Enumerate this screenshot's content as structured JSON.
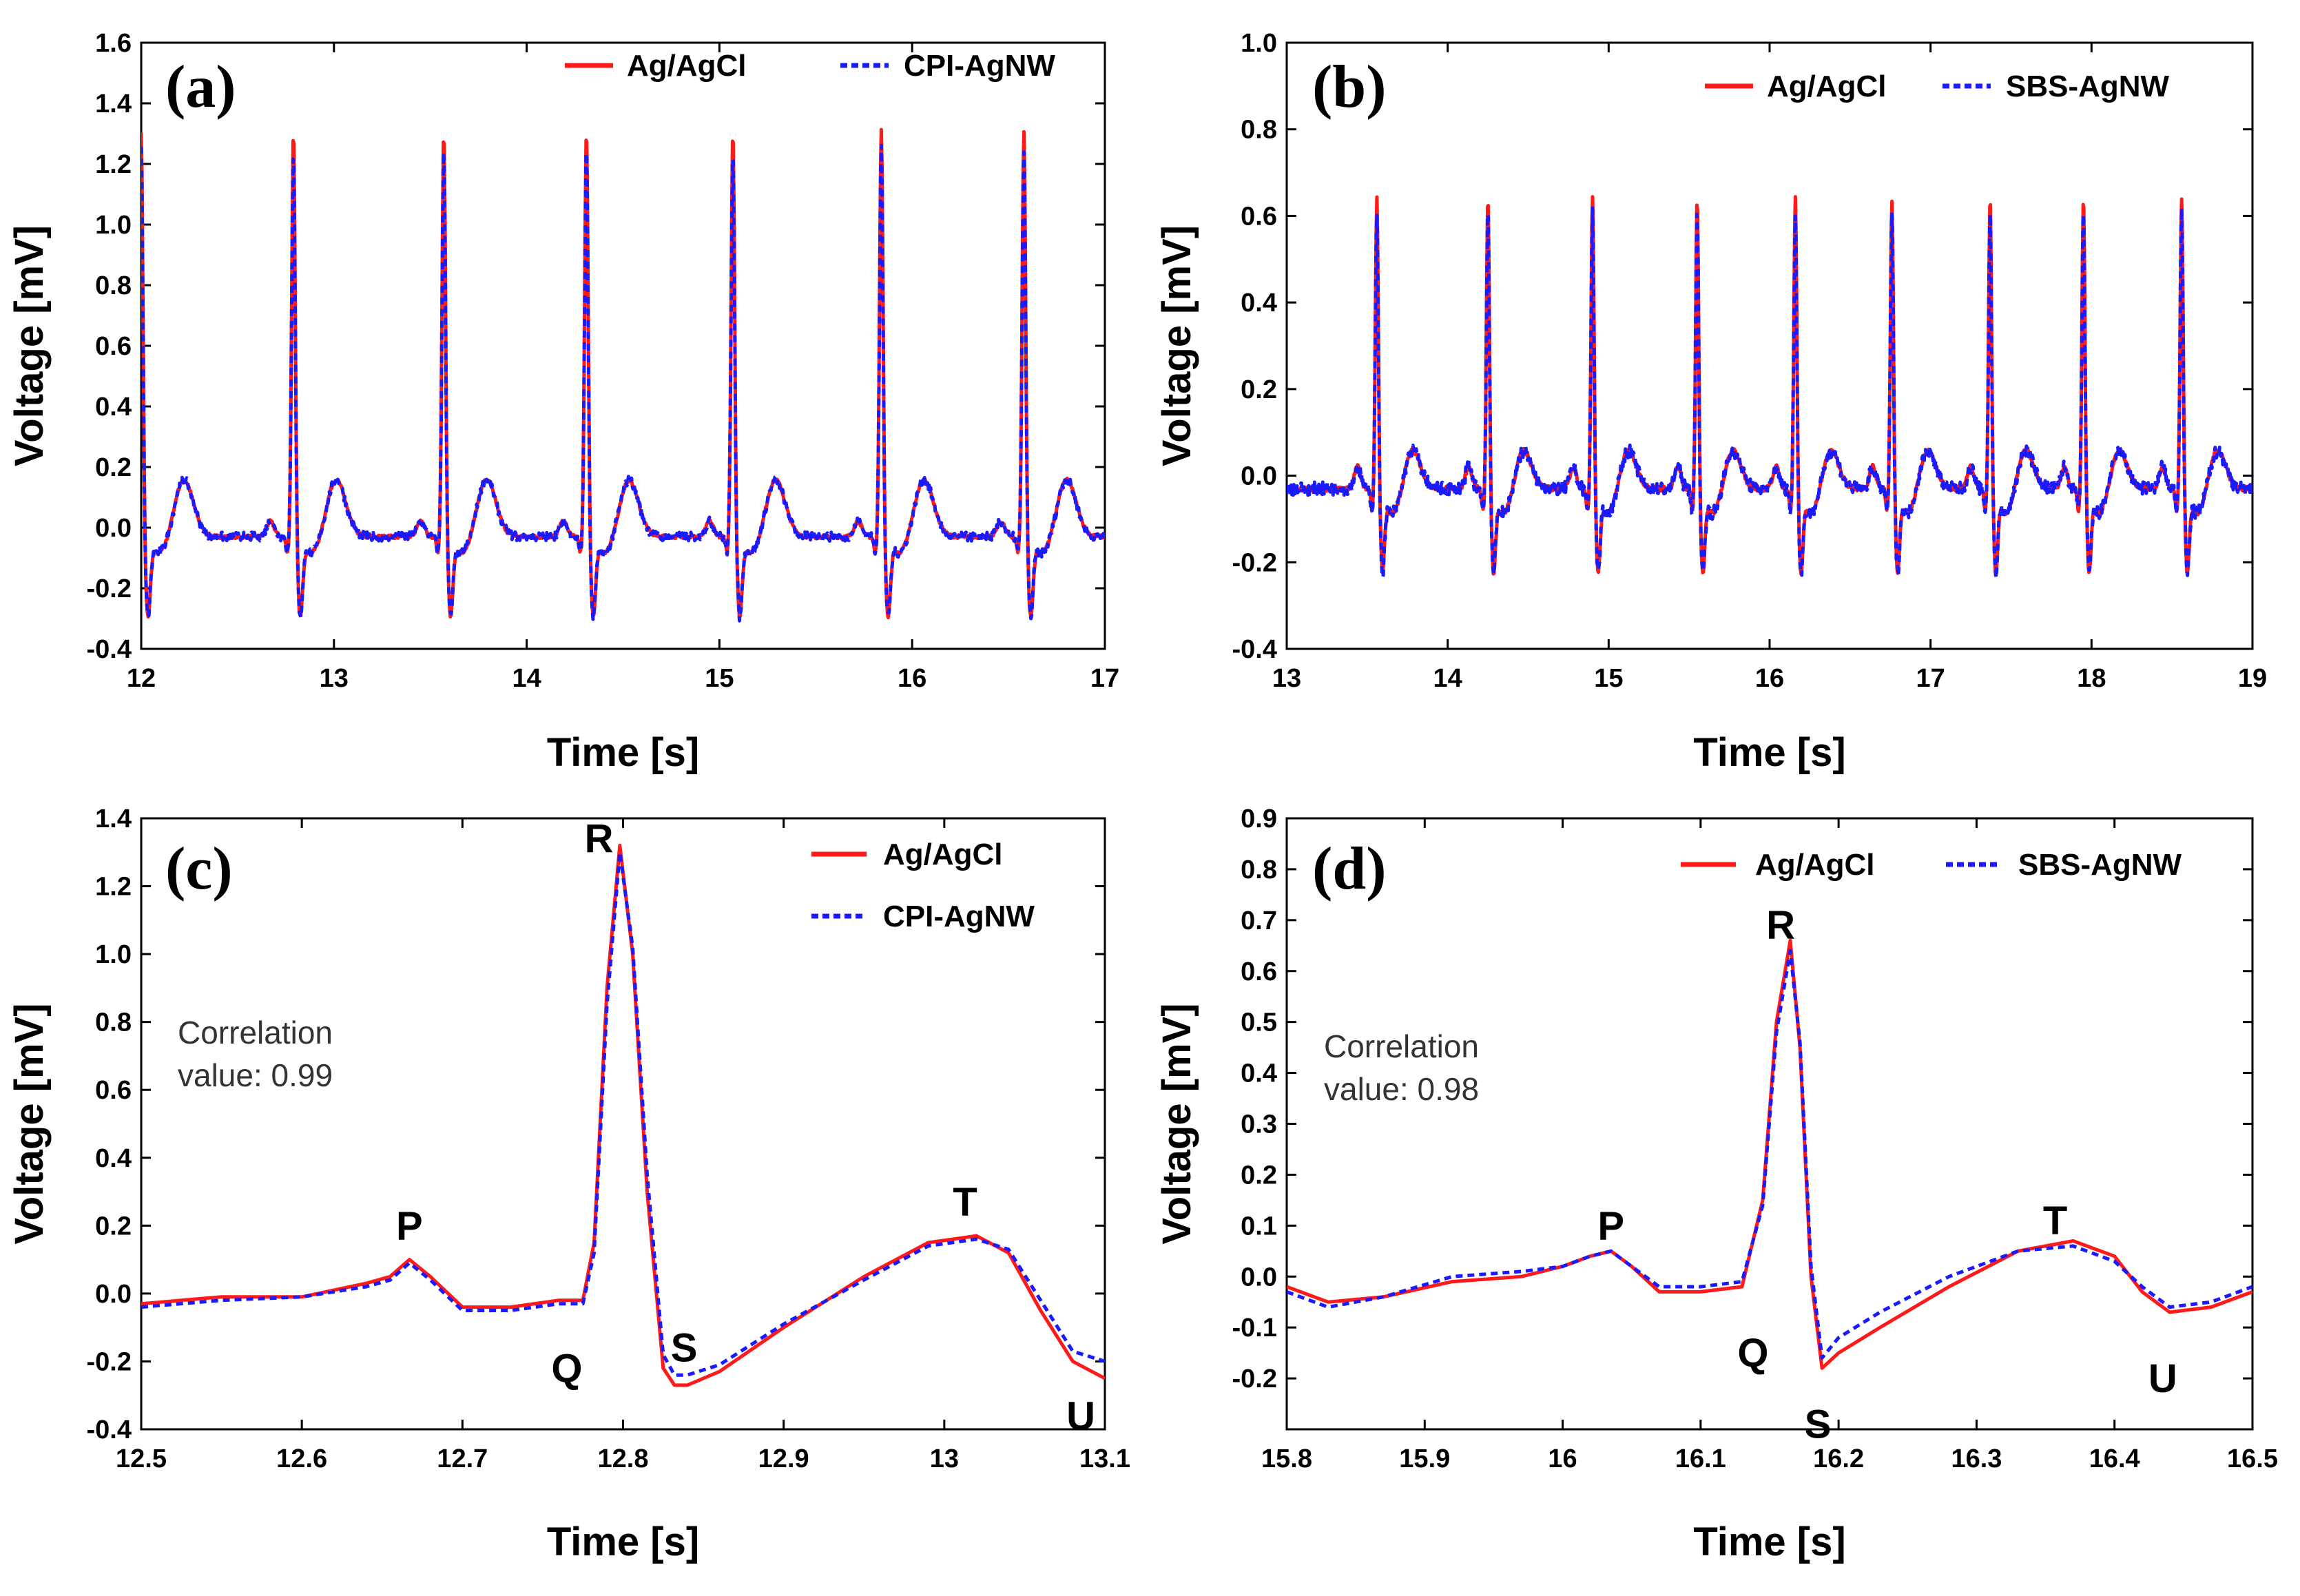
{
  "chart_data": [
    {
      "panel": "(a)",
      "type": "line",
      "xlabel": "Time [s]",
      "ylabel": "Voltage [mV]",
      "xlim": [
        12,
        17
      ],
      "ylim": [
        -0.4,
        1.6
      ],
      "xticks": [
        "12",
        "13",
        "14",
        "15",
        "16",
        "17"
      ],
      "yticks": [
        "-0.4",
        "-0.2",
        "0.0",
        "0.2",
        "0.4",
        "0.6",
        "0.8",
        "1.0",
        "1.2",
        "1.4",
        "1.6"
      ],
      "legend_position": "top-right",
      "waveform": {
        "beat_times": [
          12.0,
          12.79,
          13.57,
          14.31,
          15.07,
          15.84,
          16.58
        ],
        "r_peak": 1.35,
        "s_value": -0.27,
        "t_value": 0.16,
        "baseline": -0.03,
        "tail_end": 17.0
      },
      "series": [
        {
          "name": "Ag/AgCl",
          "color": "#ff1a1a",
          "style": "solid"
        },
        {
          "name": "CPI-AgNW",
          "color": "#1a1aff",
          "style": "dotted"
        }
      ],
      "annotations": []
    },
    {
      "panel": "(b)",
      "type": "line",
      "xlabel": "Time [s]",
      "ylabel": "Voltage [mV]",
      "xlim": [
        13,
        19
      ],
      "ylim": [
        -0.4,
        1.0
      ],
      "xticks": [
        "13",
        "14",
        "15",
        "16",
        "17",
        "18",
        "19"
      ],
      "yticks": [
        "-0.4",
        "-0.2",
        "0.0",
        "0.2",
        "0.4",
        "0.6",
        "0.8",
        "1.0"
      ],
      "legend_position": "top-right",
      "waveform": {
        "beat_times": [
          13.56,
          14.25,
          14.9,
          15.55,
          16.16,
          16.76,
          17.37,
          17.95,
          18.56
        ],
        "r_peak": 0.68,
        "s_value": -0.2,
        "t_value": 0.06,
        "baseline": -0.03,
        "tail_end": 19.0
      },
      "series": [
        {
          "name": "Ag/AgCl",
          "color": "#ff1a1a",
          "style": "solid"
        },
        {
          "name": "SBS-AgNW",
          "color": "#1a1aff",
          "style": "dotted"
        }
      ],
      "annotations": []
    },
    {
      "panel": "(c)",
      "type": "line",
      "xlabel": "Time [s]",
      "ylabel": "Voltage [mV]",
      "xlim": [
        12.5,
        13.1
      ],
      "ylim": [
        -0.4,
        1.4
      ],
      "xticks": [
        "12.5",
        "12.6",
        "12.7",
        "12.8",
        "12.9",
        "13",
        "13.1"
      ],
      "yticks": [
        "-0.4",
        "-0.2",
        "0.0",
        "0.2",
        "0.4",
        "0.6",
        "0.8",
        "1.0",
        "1.2",
        "1.4"
      ],
      "legend_position": "top-right",
      "series": [
        {
          "name": "Ag/AgCl",
          "color": "#ff1a1a",
          "style": "solid",
          "x": [
            12.5,
            12.55,
            12.6,
            12.64,
            12.655,
            12.667,
            12.68,
            12.7,
            12.73,
            12.76,
            12.775,
            12.782,
            12.79,
            12.798,
            12.806,
            12.815,
            12.825,
            12.832,
            12.84,
            12.86,
            12.9,
            12.95,
            12.99,
            13.02,
            13.04,
            13.06,
            13.08,
            13.1
          ],
          "y": [
            -0.03,
            -0.01,
            -0.01,
            0.03,
            0.05,
            0.1,
            0.05,
            -0.04,
            -0.04,
            -0.02,
            -0.02,
            0.15,
            0.9,
            1.32,
            1.0,
            0.3,
            -0.22,
            -0.27,
            -0.27,
            -0.23,
            -0.1,
            0.05,
            0.15,
            0.17,
            0.12,
            -0.05,
            -0.2,
            -0.25
          ]
        },
        {
          "name": "CPI-AgNW",
          "color": "#1a1aff",
          "style": "dotted",
          "x": [
            12.5,
            12.55,
            12.6,
            12.64,
            12.655,
            12.667,
            12.68,
            12.7,
            12.73,
            12.76,
            12.775,
            12.782,
            12.79,
            12.798,
            12.806,
            12.815,
            12.825,
            12.832,
            12.84,
            12.86,
            12.9,
            12.95,
            12.99,
            13.02,
            13.04,
            13.06,
            13.08,
            13.1
          ],
          "y": [
            -0.04,
            -0.02,
            -0.01,
            0.02,
            0.04,
            0.09,
            0.04,
            -0.05,
            -0.05,
            -0.03,
            -0.03,
            0.12,
            0.85,
            1.3,
            1.02,
            0.35,
            -0.18,
            -0.24,
            -0.24,
            -0.21,
            -0.09,
            0.04,
            0.14,
            0.16,
            0.13,
            -0.02,
            -0.17,
            -0.2
          ]
        }
      ],
      "annotations": [
        {
          "text": "P",
          "x": 12.667,
          "y": 0.2
        },
        {
          "text": "R",
          "x": 12.785,
          "y": 1.34
        },
        {
          "text": "Q",
          "x": 12.765,
          "y": -0.22
        },
        {
          "text": "S",
          "x": 12.838,
          "y": -0.16
        },
        {
          "text": "T",
          "x": 13.013,
          "y": 0.27
        },
        {
          "text": "U",
          "x": 13.085,
          "y": -0.36
        }
      ],
      "note_lines": [
        "Correlation",
        "value: 0.99"
      ]
    },
    {
      "panel": "(d)",
      "type": "line",
      "xlabel": "Time [s]",
      "ylabel": "Voltage [mV]",
      "xlim": [
        15.8,
        16.5
      ],
      "ylim": [
        -0.3,
        0.9
      ],
      "xticks": [
        "15.8",
        "15.9",
        "16",
        "16.1",
        "16.2",
        "16.3",
        "16.4",
        "16.5"
      ],
      "yticks": [
        "-0.2",
        "-0.1",
        "0.0",
        "0.1",
        "0.2",
        "0.3",
        "0.4",
        "0.5",
        "0.6",
        "0.7",
        "0.8",
        "0.9"
      ],
      "legend_position": "top-right",
      "series": [
        {
          "name": "Ag/AgCl",
          "color": "#ff1a1a",
          "style": "solid",
          "x": [
            15.8,
            15.83,
            15.87,
            15.92,
            15.97,
            16.0,
            16.02,
            16.035,
            16.05,
            16.07,
            16.1,
            16.13,
            16.145,
            16.155,
            16.165,
            16.172,
            16.18,
            16.188,
            16.2,
            16.23,
            16.28,
            16.33,
            16.37,
            16.4,
            16.42,
            16.44,
            16.47,
            16.5
          ],
          "y": [
            -0.02,
            -0.05,
            -0.04,
            -0.01,
            0.0,
            0.02,
            0.04,
            0.05,
            0.02,
            -0.03,
            -0.03,
            -0.02,
            0.15,
            0.5,
            0.66,
            0.45,
            0.0,
            -0.18,
            -0.15,
            -0.1,
            -0.02,
            0.05,
            0.07,
            0.04,
            -0.03,
            -0.07,
            -0.06,
            -0.03
          ]
        },
        {
          "name": "SBS-AgNW",
          "color": "#1a1aff",
          "style": "dotted",
          "x": [
            15.8,
            15.83,
            15.87,
            15.92,
            15.97,
            16.0,
            16.02,
            16.035,
            16.05,
            16.07,
            16.1,
            16.13,
            16.145,
            16.155,
            16.165,
            16.172,
            16.18,
            16.188,
            16.2,
            16.23,
            16.28,
            16.33,
            16.37,
            16.4,
            16.42,
            16.44,
            16.47,
            16.5
          ],
          "y": [
            -0.03,
            -0.06,
            -0.04,
            0.0,
            0.01,
            0.02,
            0.04,
            0.05,
            0.02,
            -0.02,
            -0.02,
            -0.01,
            0.14,
            0.48,
            0.64,
            0.46,
            0.02,
            -0.16,
            -0.12,
            -0.07,
            0.0,
            0.05,
            0.06,
            0.03,
            -0.02,
            -0.06,
            -0.05,
            -0.02
          ]
        }
      ],
      "annotations": [
        {
          "text": "P",
          "x": 16.035,
          "y": 0.1
        },
        {
          "text": "R",
          "x": 16.158,
          "y": 0.69
        },
        {
          "text": "Q",
          "x": 16.138,
          "y": -0.15
        },
        {
          "text": "S",
          "x": 16.185,
          "y": -0.29
        },
        {
          "text": "T",
          "x": 16.357,
          "y": 0.11
        },
        {
          "text": "U",
          "x": 16.435,
          "y": -0.2
        }
      ],
      "note_lines": [
        "Correlation",
        "value: 0.98"
      ]
    }
  ]
}
